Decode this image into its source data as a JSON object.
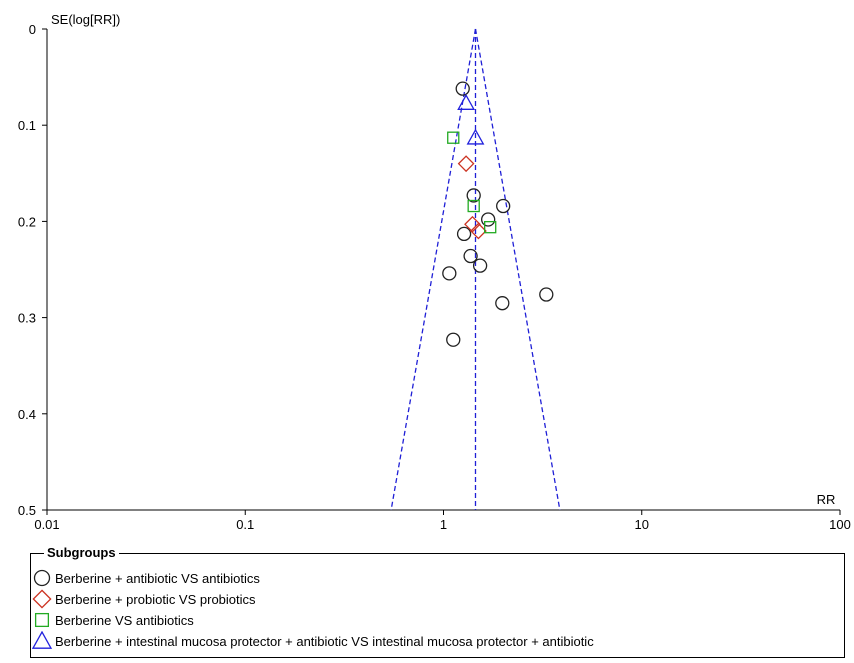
{
  "chart_data": {
    "type": "scatter",
    "subtype": "funnel",
    "ylabel": "SE(log[RR])",
    "xlabel": "RR",
    "x_scale": "log",
    "xlim": [
      0.01,
      100
    ],
    "x_ticks": [
      0.01,
      0.1,
      1,
      10,
      100
    ],
    "x_tick_labels": [
      "0.01",
      "0.1",
      "1",
      "10",
      "100"
    ],
    "ylim": [
      0,
      0.5
    ],
    "y_inverted": true,
    "y_ticks": [
      0,
      0.1,
      0.2,
      0.3,
      0.4,
      0.5
    ],
    "y_tick_labels": [
      "0",
      "0.1",
      "0.2",
      "0.3",
      "0.4",
      "0.5"
    ],
    "pooled_rr": 1.45,
    "funnel_color": "#1f1fd6",
    "grid": false,
    "legend_position": "bottom",
    "legend_title": "Subgroups",
    "series": [
      {
        "name": "Berberine + antibiotic VS antibiotics",
        "marker": "circle",
        "color": "#222222",
        "points": [
          {
            "x": 1.25,
            "y": 0.062
          },
          {
            "x": 1.42,
            "y": 0.173
          },
          {
            "x": 2.0,
            "y": 0.184
          },
          {
            "x": 1.68,
            "y": 0.198
          },
          {
            "x": 1.27,
            "y": 0.213
          },
          {
            "x": 1.37,
            "y": 0.236
          },
          {
            "x": 1.53,
            "y": 0.246
          },
          {
            "x": 1.07,
            "y": 0.254
          },
          {
            "x": 3.3,
            "y": 0.276
          },
          {
            "x": 1.98,
            "y": 0.285
          },
          {
            "x": 1.12,
            "y": 0.323
          }
        ]
      },
      {
        "name": "Berberine + probiotic VS probiotics",
        "marker": "diamond",
        "color": "#cc3322",
        "points": [
          {
            "x": 1.3,
            "y": 0.14
          },
          {
            "x": 1.4,
            "y": 0.203
          },
          {
            "x": 1.5,
            "y": 0.21
          }
        ]
      },
      {
        "name": "Berberine VS antibiotics",
        "marker": "square",
        "color": "#22aa22",
        "points": [
          {
            "x": 1.12,
            "y": 0.113
          },
          {
            "x": 1.42,
            "y": 0.184
          },
          {
            "x": 1.72,
            "y": 0.206
          }
        ]
      },
      {
        "name": "Berberine + intestinal mucosa protector + antibiotic VS intestinal mucosa protector + antibiotic",
        "marker": "triangle",
        "color": "#2222dd",
        "points": [
          {
            "x": 1.3,
            "y": 0.077
          },
          {
            "x": 1.45,
            "y": 0.113
          }
        ]
      }
    ]
  }
}
